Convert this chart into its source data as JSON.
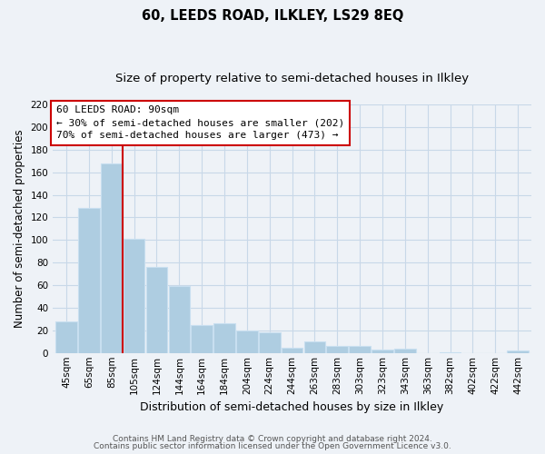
{
  "title": "60, LEEDS ROAD, ILKLEY, LS29 8EQ",
  "subtitle": "Size of property relative to semi-detached houses in Ilkley",
  "xlabel": "Distribution of semi-detached houses by size in Ilkley",
  "ylabel": "Number of semi-detached properties",
  "footer_line1": "Contains HM Land Registry data © Crown copyright and database right 2024.",
  "footer_line2": "Contains public sector information licensed under the Open Government Licence v3.0.",
  "bar_labels": [
    "45sqm",
    "65sqm",
    "85sqm",
    "105sqm",
    "124sqm",
    "144sqm",
    "164sqm",
    "184sqm",
    "204sqm",
    "224sqm",
    "244sqm",
    "263sqm",
    "283sqm",
    "303sqm",
    "323sqm",
    "343sqm",
    "363sqm",
    "382sqm",
    "402sqm",
    "422sqm",
    "442sqm"
  ],
  "bar_values": [
    28,
    128,
    168,
    101,
    76,
    59,
    25,
    26,
    20,
    18,
    5,
    10,
    6,
    6,
    3,
    4,
    0,
    1,
    0,
    0,
    2
  ],
  "bar_color": "#aecde1",
  "bar_edge_color": "#c8dff0",
  "property_line_index": 2.5,
  "property_line_color": "#cc0000",
  "annotation_line1": "60 LEEDS ROAD: 90sqm",
  "annotation_line2": "← 30% of semi-detached houses are smaller (202)",
  "annotation_line3": "70% of semi-detached houses are larger (473) →",
  "ylim": [
    0,
    220
  ],
  "yticks": [
    0,
    20,
    40,
    60,
    80,
    100,
    120,
    140,
    160,
    180,
    200,
    220
  ],
  "grid_color": "#c8d8e8",
  "background_color": "#eef2f7",
  "title_fontsize": 10.5,
  "subtitle_fontsize": 9.5,
  "xlabel_fontsize": 9,
  "ylabel_fontsize": 8.5,
  "tick_fontsize": 7.5,
  "annot_fontsize": 8,
  "footer_fontsize": 6.5
}
